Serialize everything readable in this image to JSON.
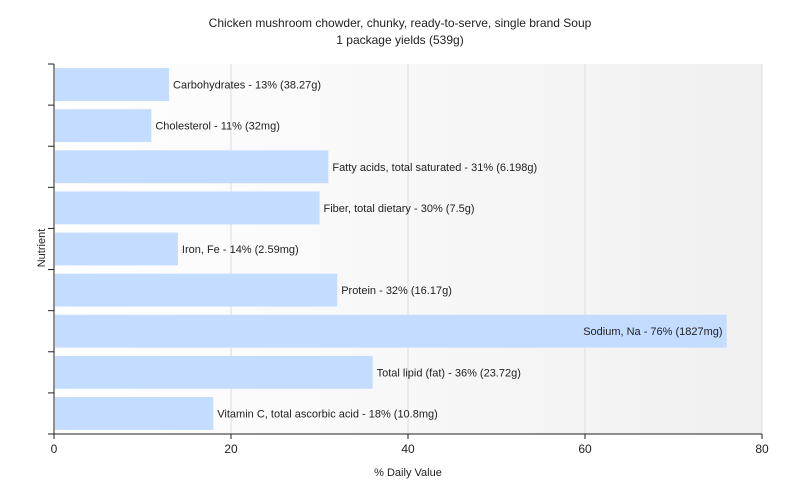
{
  "chart_data": {
    "type": "bar",
    "orientation": "horizontal",
    "title": "Chicken mushroom chowder, chunky, ready-to-serve, single brand Soup",
    "subtitle": "1 package yields (539g)",
    "xlabel": "% Daily Value",
    "ylabel": "Nutrient",
    "xlim": [
      0,
      80
    ],
    "xticks": [
      0,
      20,
      40,
      60,
      80
    ],
    "grid": true,
    "bar_color": "#c4dcff",
    "categories": [
      "Carbohydrates",
      "Cholesterol",
      "Fatty acids, total saturated",
      "Fiber, total dietary",
      "Iron, Fe",
      "Protein",
      "Sodium, Na",
      "Total lipid (fat)",
      "Vitamin C, total ascorbic acid"
    ],
    "values": [
      13,
      11,
      31,
      30,
      14,
      32,
      76,
      36,
      18
    ],
    "labels": [
      "Carbohydrates - 13% (38.27g)",
      "Cholesterol - 11% (32mg)",
      "Fatty acids, total saturated - 31% (6.198g)",
      "Fiber, total dietary - 30% (7.5g)",
      "Iron, Fe - 14% (2.59mg)",
      "Protein - 32% (16.17g)",
      "Sodium, Na - 76% (1827mg)",
      "Total lipid (fat) - 36% (23.72g)",
      "Vitamin C, total ascorbic acid - 18% (10.8mg)"
    ]
  }
}
